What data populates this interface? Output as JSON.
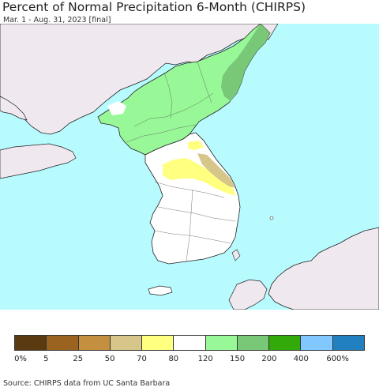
{
  "header": {
    "title": "Percent of Normal Precipitation 6-Month (CHIRPS)",
    "subtitle": "Mar. 1 - Aug. 31, 2023 [final]"
  },
  "colors": {
    "sea": "#b8fbff",
    "foreign_land": "#efe8ef",
    "border": "#222222"
  },
  "legend": {
    "swatches": [
      "#5a3a10",
      "#9a6420",
      "#c49040",
      "#d7c68a",
      "#ffff80",
      "#ffffff",
      "#98f898",
      "#78c878",
      "#32aa0a",
      "#80c8ff",
      "#2080c0"
    ],
    "labels": [
      "0%",
      "5",
      "25",
      "50",
      "70",
      "80",
      "120",
      "150",
      "200",
      "400",
      "600%"
    ]
  },
  "footer": {
    "source": "Source: CHIRPS data from UC Santa Barbara"
  }
}
